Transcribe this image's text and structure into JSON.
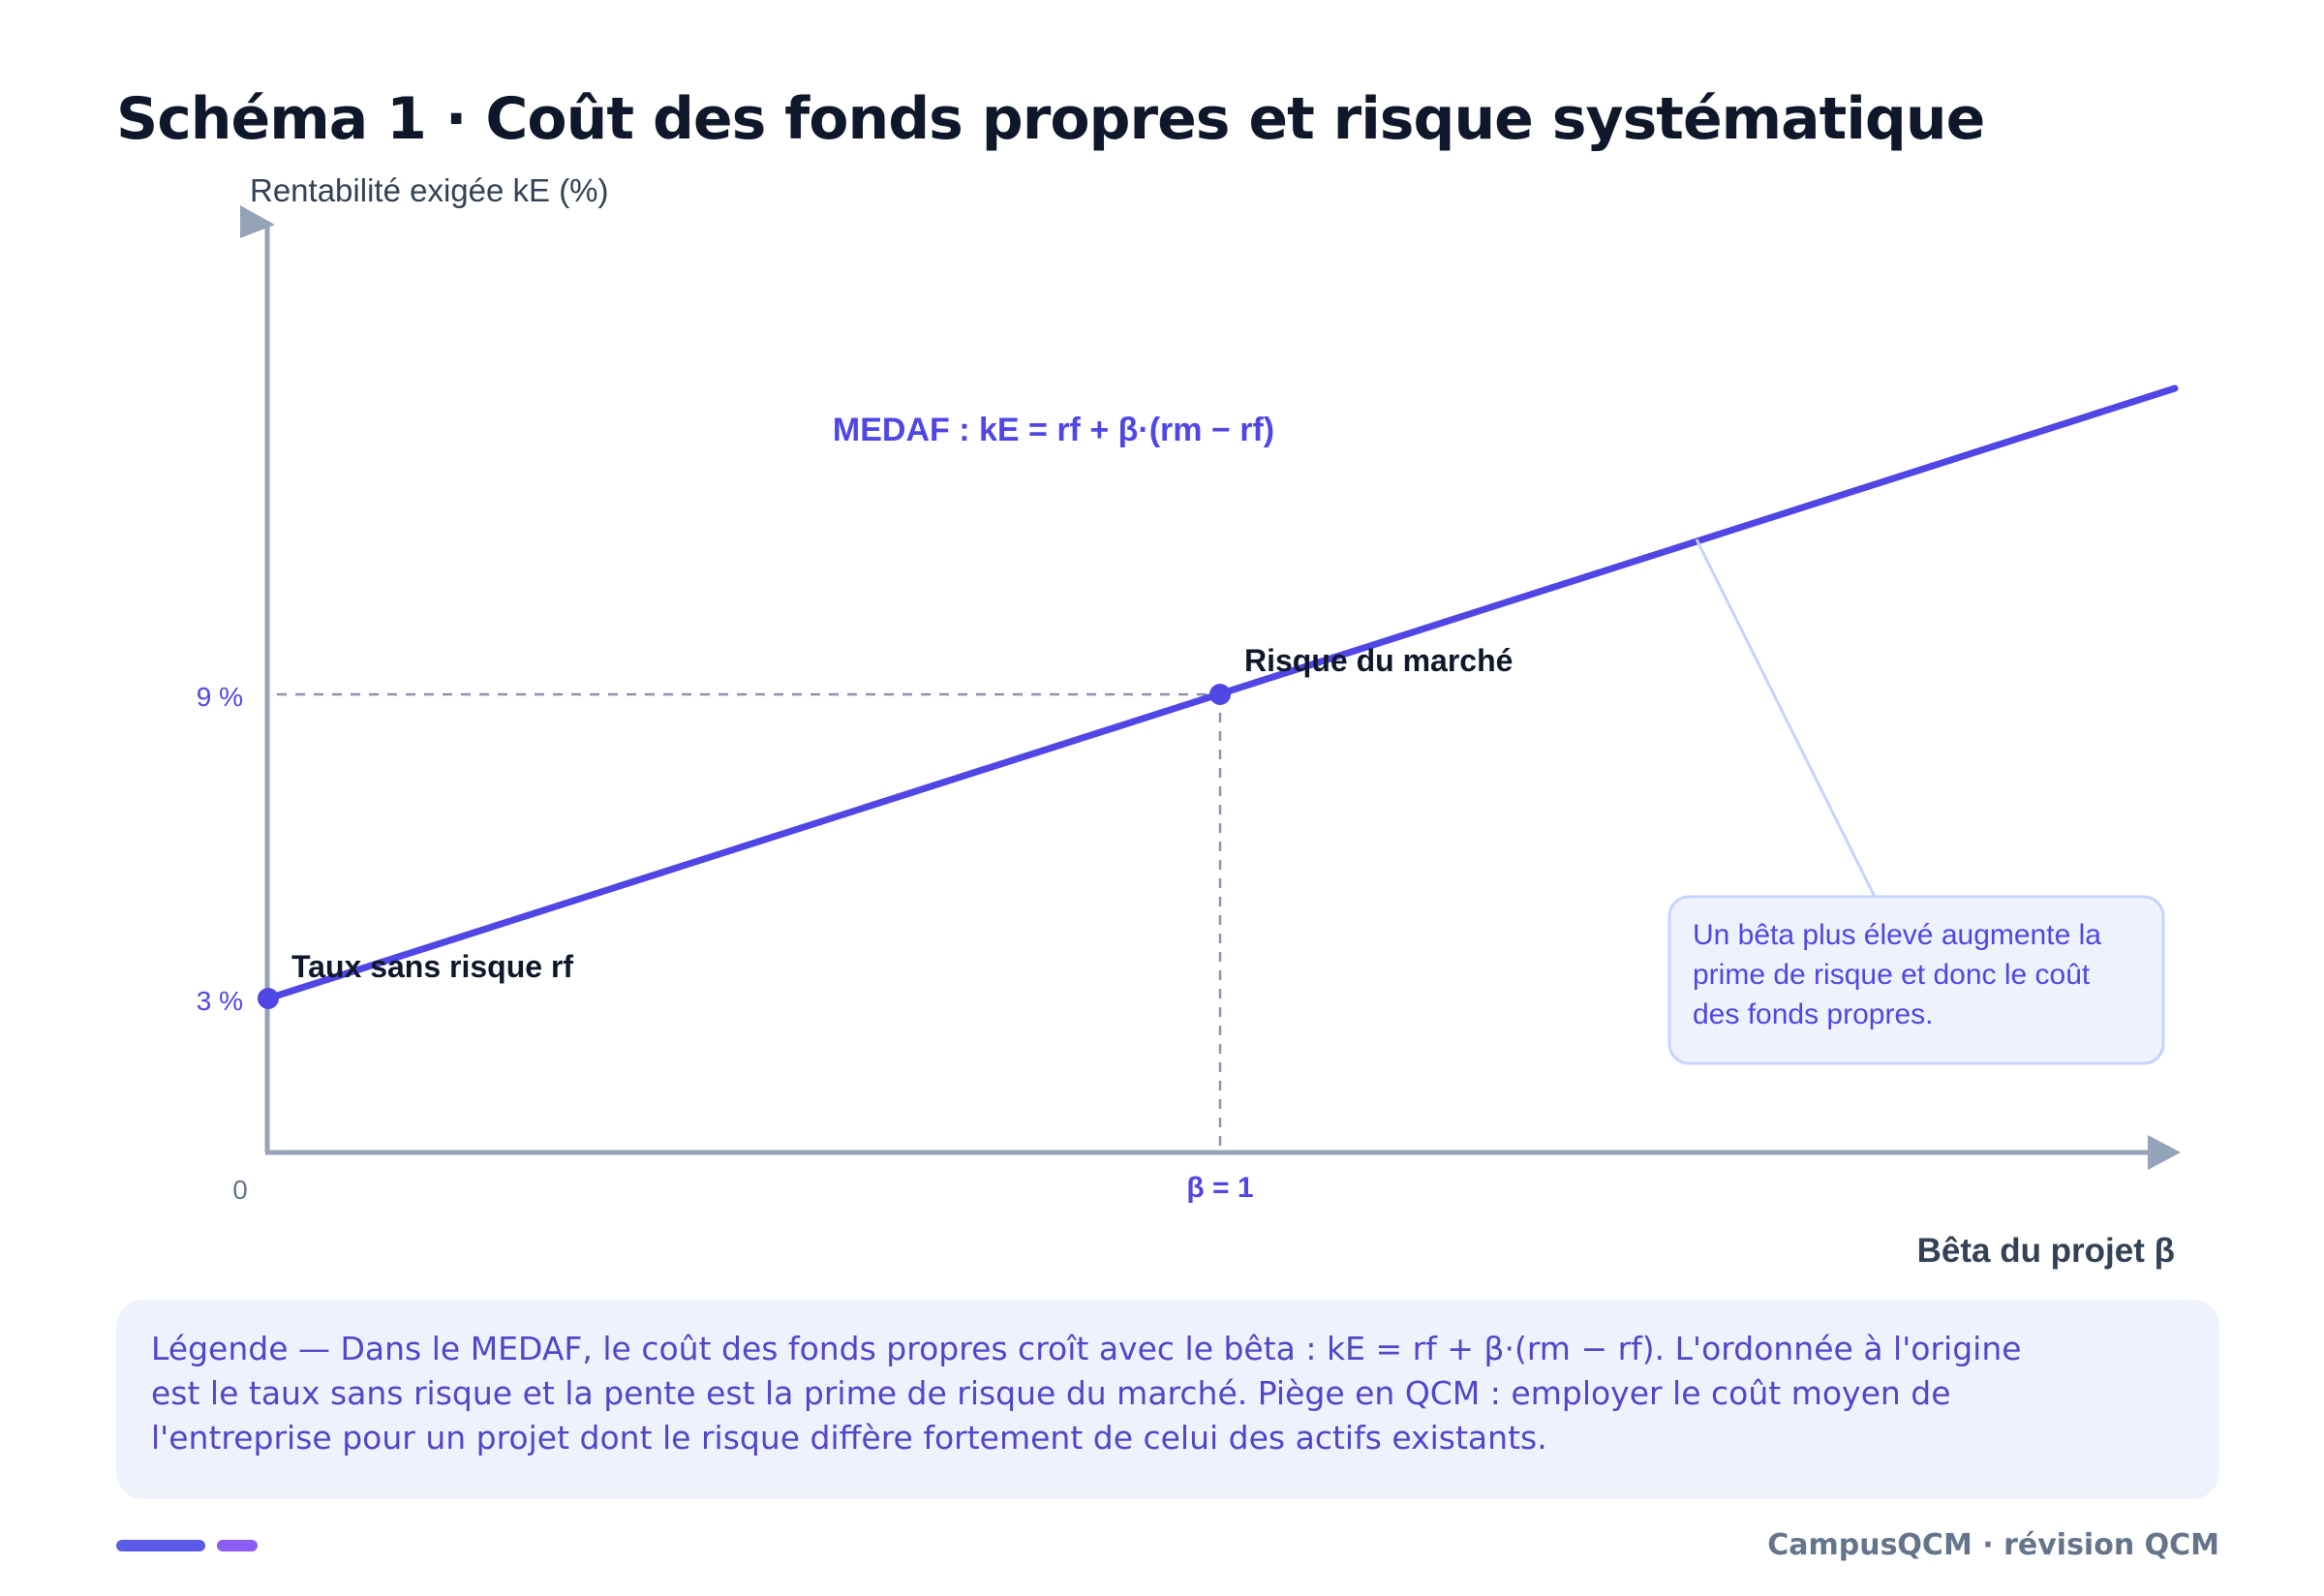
{
  "title": "Schéma 1 · Coût des fonds propres et risque systématique",
  "chart": {
    "y_axis_label": "Rentabilité exigée kE (%)",
    "x_axis_label": "Bêta du projet β",
    "origin_label": "0",
    "formula": "MEDAF : kE = rf + β·(rm − rf)",
    "ticks": {
      "y_low": "3 %",
      "y_high": "9 %",
      "x_beta": "β = 1"
    },
    "points": {
      "risk_free": "Taux sans risque rf",
      "market": "Risque du marché"
    },
    "callout_lines": [
      "Un bêta plus élevé augmente la",
      "prime de risque et donc le coût",
      "des fonds propres."
    ]
  },
  "chart_data": {
    "type": "line",
    "x": [
      0,
      1
    ],
    "y": [
      3,
      9
    ],
    "xlabel": "Bêta du projet β",
    "ylabel": "Rentabilité exigée kE (%)",
    "annotations": [
      "Taux sans risque rf",
      "Risque du marché"
    ]
  },
  "legend_text": "Légende — Dans le MEDAF, le coût des fonds propres croît avec le bêta : kE = rf + β·(rm − rf). L'ordonnée à l'origine est le taux sans risque et la pente est la prime de risque du marché. Piège en QCM : employer le coût moyen de l'entreprise pour un projet dont le risque diffère fortement de celui des actifs existants.",
  "footer_brand": "CampusQCM · révision QCM",
  "colors": {
    "accent": "#4f46e5",
    "axis": "#94a3b8",
    "callout_bg": "#eef2fc",
    "callout_border": "#c7d2fe"
  }
}
